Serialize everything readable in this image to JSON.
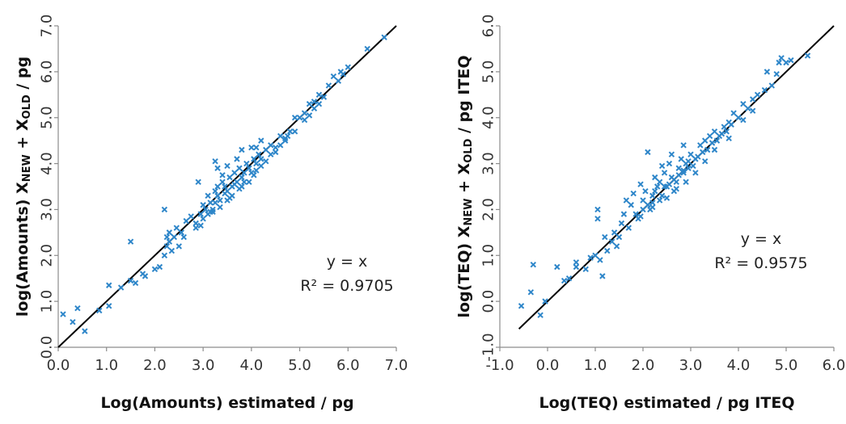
{
  "chart_data": [
    {
      "type": "scatter",
      "xlabel": "Log(Amounts) estimated / pg",
      "ylabel_parts": [
        "log(Amounts) X",
        "NEW",
        " + X",
        "OLD",
        " / pg"
      ],
      "xlim": [
        0.0,
        7.0
      ],
      "ylim": [
        0.0,
        7.0
      ],
      "xticks": [
        "0.0",
        "1.0",
        "2.0",
        "3.0",
        "4.0",
        "5.0",
        "6.0",
        "7.0"
      ],
      "yticks": [
        "0.0",
        "1.0",
        "2.0",
        "3.0",
        "4.0",
        "5.0",
        "6.0",
        "7.0"
      ],
      "annotation": [
        "y = x",
        "R² = 0.9705"
      ],
      "fit_line": [
        [
          0.0,
          0.0
        ],
        [
          7.0,
          7.0
        ]
      ],
      "marker_color": "#2E86C9",
      "line_color": "#000000",
      "points": [
        [
          0.1,
          0.72
        ],
        [
          0.3,
          0.55
        ],
        [
          0.4,
          0.85
        ],
        [
          0.55,
          0.35
        ],
        [
          0.85,
          0.8
        ],
        [
          1.05,
          0.9
        ],
        [
          1.05,
          1.35
        ],
        [
          1.3,
          1.3
        ],
        [
          1.5,
          1.45
        ],
        [
          1.5,
          2.3
        ],
        [
          1.6,
          1.4
        ],
        [
          1.75,
          1.6
        ],
        [
          1.8,
          1.55
        ],
        [
          2.0,
          1.7
        ],
        [
          2.1,
          1.75
        ],
        [
          2.2,
          2.0
        ],
        [
          2.25,
          2.2
        ],
        [
          2.25,
          2.4
        ],
        [
          2.3,
          2.3
        ],
        [
          2.3,
          2.5
        ],
        [
          2.35,
          2.1
        ],
        [
          2.4,
          2.4
        ],
        [
          2.45,
          2.6
        ],
        [
          2.5,
          2.2
        ],
        [
          2.55,
          2.5
        ],
        [
          2.6,
          2.4
        ],
        [
          2.65,
          2.75
        ],
        [
          2.2,
          3.0
        ],
        [
          2.75,
          2.85
        ],
        [
          2.85,
          2.7
        ],
        [
          2.95,
          2.9
        ],
        [
          3.0,
          3.1
        ],
        [
          3.05,
          3.0
        ],
        [
          3.1,
          3.3
        ],
        [
          3.15,
          3.15
        ],
        [
          3.2,
          3.0
        ],
        [
          3.25,
          3.4
        ],
        [
          3.3,
          3.5
        ],
        [
          3.3,
          3.3
        ],
        [
          3.35,
          3.2
        ],
        [
          3.4,
          3.6
        ],
        [
          3.45,
          3.5
        ],
        [
          3.5,
          3.4
        ],
        [
          3.55,
          3.7
        ],
        [
          3.6,
          3.5
        ],
        [
          3.65,
          3.8
        ],
        [
          3.7,
          3.6
        ],
        [
          3.75,
          3.9
        ],
        [
          3.8,
          3.7
        ],
        [
          3.85,
          3.8
        ],
        [
          3.9,
          4.0
        ],
        [
          3.95,
          3.9
        ],
        [
          4.0,
          3.8
        ],
        [
          4.05,
          4.1
        ],
        [
          4.1,
          4.0
        ],
        [
          4.15,
          4.2
        ],
        [
          4.2,
          4.1
        ],
        [
          4.3,
          4.3
        ],
        [
          4.4,
          4.4
        ],
        [
          4.5,
          4.35
        ],
        [
          4.6,
          4.6
        ],
        [
          4.7,
          4.5
        ],
        [
          4.8,
          4.7
        ],
        [
          4.9,
          5.0
        ],
        [
          5.0,
          5.0
        ],
        [
          5.1,
          5.1
        ],
        [
          5.2,
          5.3
        ],
        [
          5.3,
          5.35
        ],
        [
          5.4,
          5.5
        ],
        [
          5.5,
          5.45
        ],
        [
          5.6,
          5.7
        ],
        [
          5.7,
          5.9
        ],
        [
          5.8,
          5.8
        ],
        [
          5.85,
          6.0
        ],
        [
          5.9,
          5.95
        ],
        [
          6.0,
          6.1
        ],
        [
          6.4,
          6.5
        ],
        [
          6.75,
          6.75
        ],
        [
          2.9,
          3.6
        ],
        [
          3.25,
          4.05
        ],
        [
          3.3,
          3.9
        ],
        [
          3.4,
          3.75
        ],
        [
          3.5,
          3.95
        ],
        [
          3.7,
          4.1
        ],
        [
          3.8,
          4.3
        ],
        [
          4.0,
          4.35
        ],
        [
          4.1,
          4.35
        ],
        [
          4.2,
          4.5
        ],
        [
          3.1,
          2.9
        ],
        [
          3.2,
          2.95
        ],
        [
          3.35,
          3.05
        ],
        [
          3.5,
          3.2
        ],
        [
          3.6,
          3.3
        ],
        [
          3.8,
          3.5
        ],
        [
          3.95,
          3.6
        ],
        [
          4.1,
          3.85
        ],
        [
          4.3,
          4.05
        ],
        [
          4.6,
          4.4
        ],
        [
          4.9,
          4.7
        ],
        [
          5.1,
          4.95
        ],
        [
          5.4,
          5.3
        ],
        [
          2.95,
          2.65
        ],
        [
          3.0,
          2.8
        ],
        [
          3.25,
          3.15
        ],
        [
          3.45,
          3.35
        ],
        [
          3.65,
          3.55
        ],
        [
          3.85,
          3.6
        ],
        [
          4.05,
          3.75
        ],
        [
          4.4,
          4.2
        ],
        [
          4.75,
          4.6
        ],
        [
          5.3,
          5.2
        ],
        [
          2.85,
          2.6
        ],
        [
          3.15,
          2.95
        ],
        [
          3.55,
          3.25
        ],
        [
          3.75,
          3.45
        ],
        [
          4.2,
          3.95
        ],
        [
          4.5,
          4.25
        ],
        [
          4.7,
          4.55
        ],
        [
          5.2,
          5.05
        ]
      ]
    },
    {
      "type": "scatter",
      "xlabel": "Log(TEQ) estimated / pg ITEQ",
      "ylabel_parts": [
        "log(TEQ) X",
        "NEW",
        " + X",
        "OLD",
        " / pg ITEQ"
      ],
      "xlim": [
        -1.0,
        6.0
      ],
      "ylim": [
        -1.0,
        6.0
      ],
      "xticks": [
        "-1.0",
        "0.0",
        "1.0",
        "2.0",
        "3.0",
        "4.0",
        "5.0",
        "6.0"
      ],
      "yticks": [
        "-1.0",
        "0.0",
        "1.0",
        "2.0",
        "3.0",
        "4.0",
        "5.0",
        "6.0"
      ],
      "annotation": [
        "y = x",
        "R² = 0.9575"
      ],
      "fit_line": [
        [
          -0.6,
          -0.6
        ],
        [
          6.0,
          6.0
        ]
      ],
      "marker_color": "#2E86C9",
      "line_color": "#000000",
      "points": [
        [
          -0.55,
          -0.1
        ],
        [
          -0.35,
          0.2
        ],
        [
          -0.3,
          0.8
        ],
        [
          -0.15,
          -0.3
        ],
        [
          -0.05,
          0.0
        ],
        [
          0.2,
          0.75
        ],
        [
          0.35,
          0.45
        ],
        [
          0.45,
          0.5
        ],
        [
          0.6,
          0.85
        ],
        [
          0.6,
          0.75
        ],
        [
          0.8,
          0.7
        ],
        [
          0.9,
          0.95
        ],
        [
          1.0,
          1.0
        ],
        [
          1.05,
          2.0
        ],
        [
          1.05,
          1.8
        ],
        [
          1.1,
          0.9
        ],
        [
          1.15,
          0.55
        ],
        [
          1.2,
          1.4
        ],
        [
          1.25,
          1.1
        ],
        [
          1.35,
          1.3
        ],
        [
          1.4,
          1.5
        ],
        [
          1.45,
          1.2
        ],
        [
          1.5,
          1.4
        ],
        [
          1.55,
          1.7
        ],
        [
          1.6,
          1.9
        ],
        [
          1.65,
          2.2
        ],
        [
          1.7,
          1.6
        ],
        [
          1.75,
          2.1
        ],
        [
          1.85,
          1.9
        ],
        [
          1.9,
          1.8
        ],
        [
          2.0,
          2.2
        ],
        [
          2.05,
          2.4
        ],
        [
          2.1,
          3.25
        ],
        [
          2.15,
          2.0
        ],
        [
          2.2,
          2.3
        ],
        [
          2.3,
          2.5
        ],
        [
          2.35,
          2.6
        ],
        [
          2.4,
          2.3
        ],
        [
          2.45,
          2.8
        ],
        [
          2.5,
          2.5
        ],
        [
          2.55,
          3.0
        ],
        [
          2.6,
          2.7
        ],
        [
          2.65,
          2.4
        ],
        [
          2.7,
          2.6
        ],
        [
          2.75,
          2.9
        ],
        [
          2.8,
          3.1
        ],
        [
          2.85,
          2.8
        ],
        [
          2.9,
          3.0
        ],
        [
          2.95,
          2.9
        ],
        [
          3.0,
          3.2
        ],
        [
          3.1,
          3.1
        ],
        [
          3.2,
          3.4
        ],
        [
          3.3,
          3.5
        ],
        [
          3.4,
          3.6
        ],
        [
          3.5,
          3.7
        ],
        [
          3.6,
          3.6
        ],
        [
          3.7,
          3.8
        ],
        [
          3.8,
          3.9
        ],
        [
          3.9,
          4.1
        ],
        [
          4.0,
          4.0
        ],
        [
          4.1,
          4.3
        ],
        [
          4.2,
          4.2
        ],
        [
          4.3,
          4.4
        ],
        [
          4.4,
          4.5
        ],
        [
          4.55,
          4.6
        ],
        [
          4.6,
          5.0
        ],
        [
          4.7,
          4.7
        ],
        [
          4.8,
          4.95
        ],
        [
          4.85,
          5.2
        ],
        [
          4.9,
          5.3
        ],
        [
          5.0,
          5.2
        ],
        [
          5.1,
          5.25
        ],
        [
          5.45,
          5.35
        ],
        [
          2.0,
          2.0
        ],
        [
          2.1,
          2.1
        ],
        [
          2.2,
          2.15
        ],
        [
          2.25,
          2.4
        ],
        [
          2.35,
          2.2
        ],
        [
          2.45,
          2.5
        ],
        [
          2.55,
          2.55
        ],
        [
          2.65,
          2.65
        ],
        [
          2.75,
          2.75
        ],
        [
          2.85,
          2.85
        ],
        [
          2.95,
          3.05
        ],
        [
          3.05,
          2.95
        ],
        [
          3.15,
          3.15
        ],
        [
          3.25,
          3.25
        ],
        [
          3.35,
          3.3
        ],
        [
          3.45,
          3.45
        ],
        [
          3.55,
          3.5
        ],
        [
          3.65,
          3.65
        ],
        [
          3.75,
          3.7
        ],
        [
          3.85,
          3.85
        ],
        [
          2.4,
          2.95
        ],
        [
          2.6,
          3.2
        ],
        [
          2.85,
          3.4
        ],
        [
          1.95,
          2.55
        ],
        [
          1.8,
          2.35
        ],
        [
          2.25,
          2.7
        ],
        [
          2.9,
          2.6
        ],
        [
          3.1,
          2.8
        ],
        [
          3.3,
          3.05
        ],
        [
          3.5,
          3.3
        ],
        [
          3.8,
          3.55
        ],
        [
          4.1,
          3.95
        ],
        [
          4.3,
          4.15
        ],
        [
          2.7,
          2.45
        ],
        [
          2.5,
          2.25
        ],
        [
          2.2,
          2.05
        ],
        [
          1.95,
          1.85
        ]
      ]
    }
  ]
}
